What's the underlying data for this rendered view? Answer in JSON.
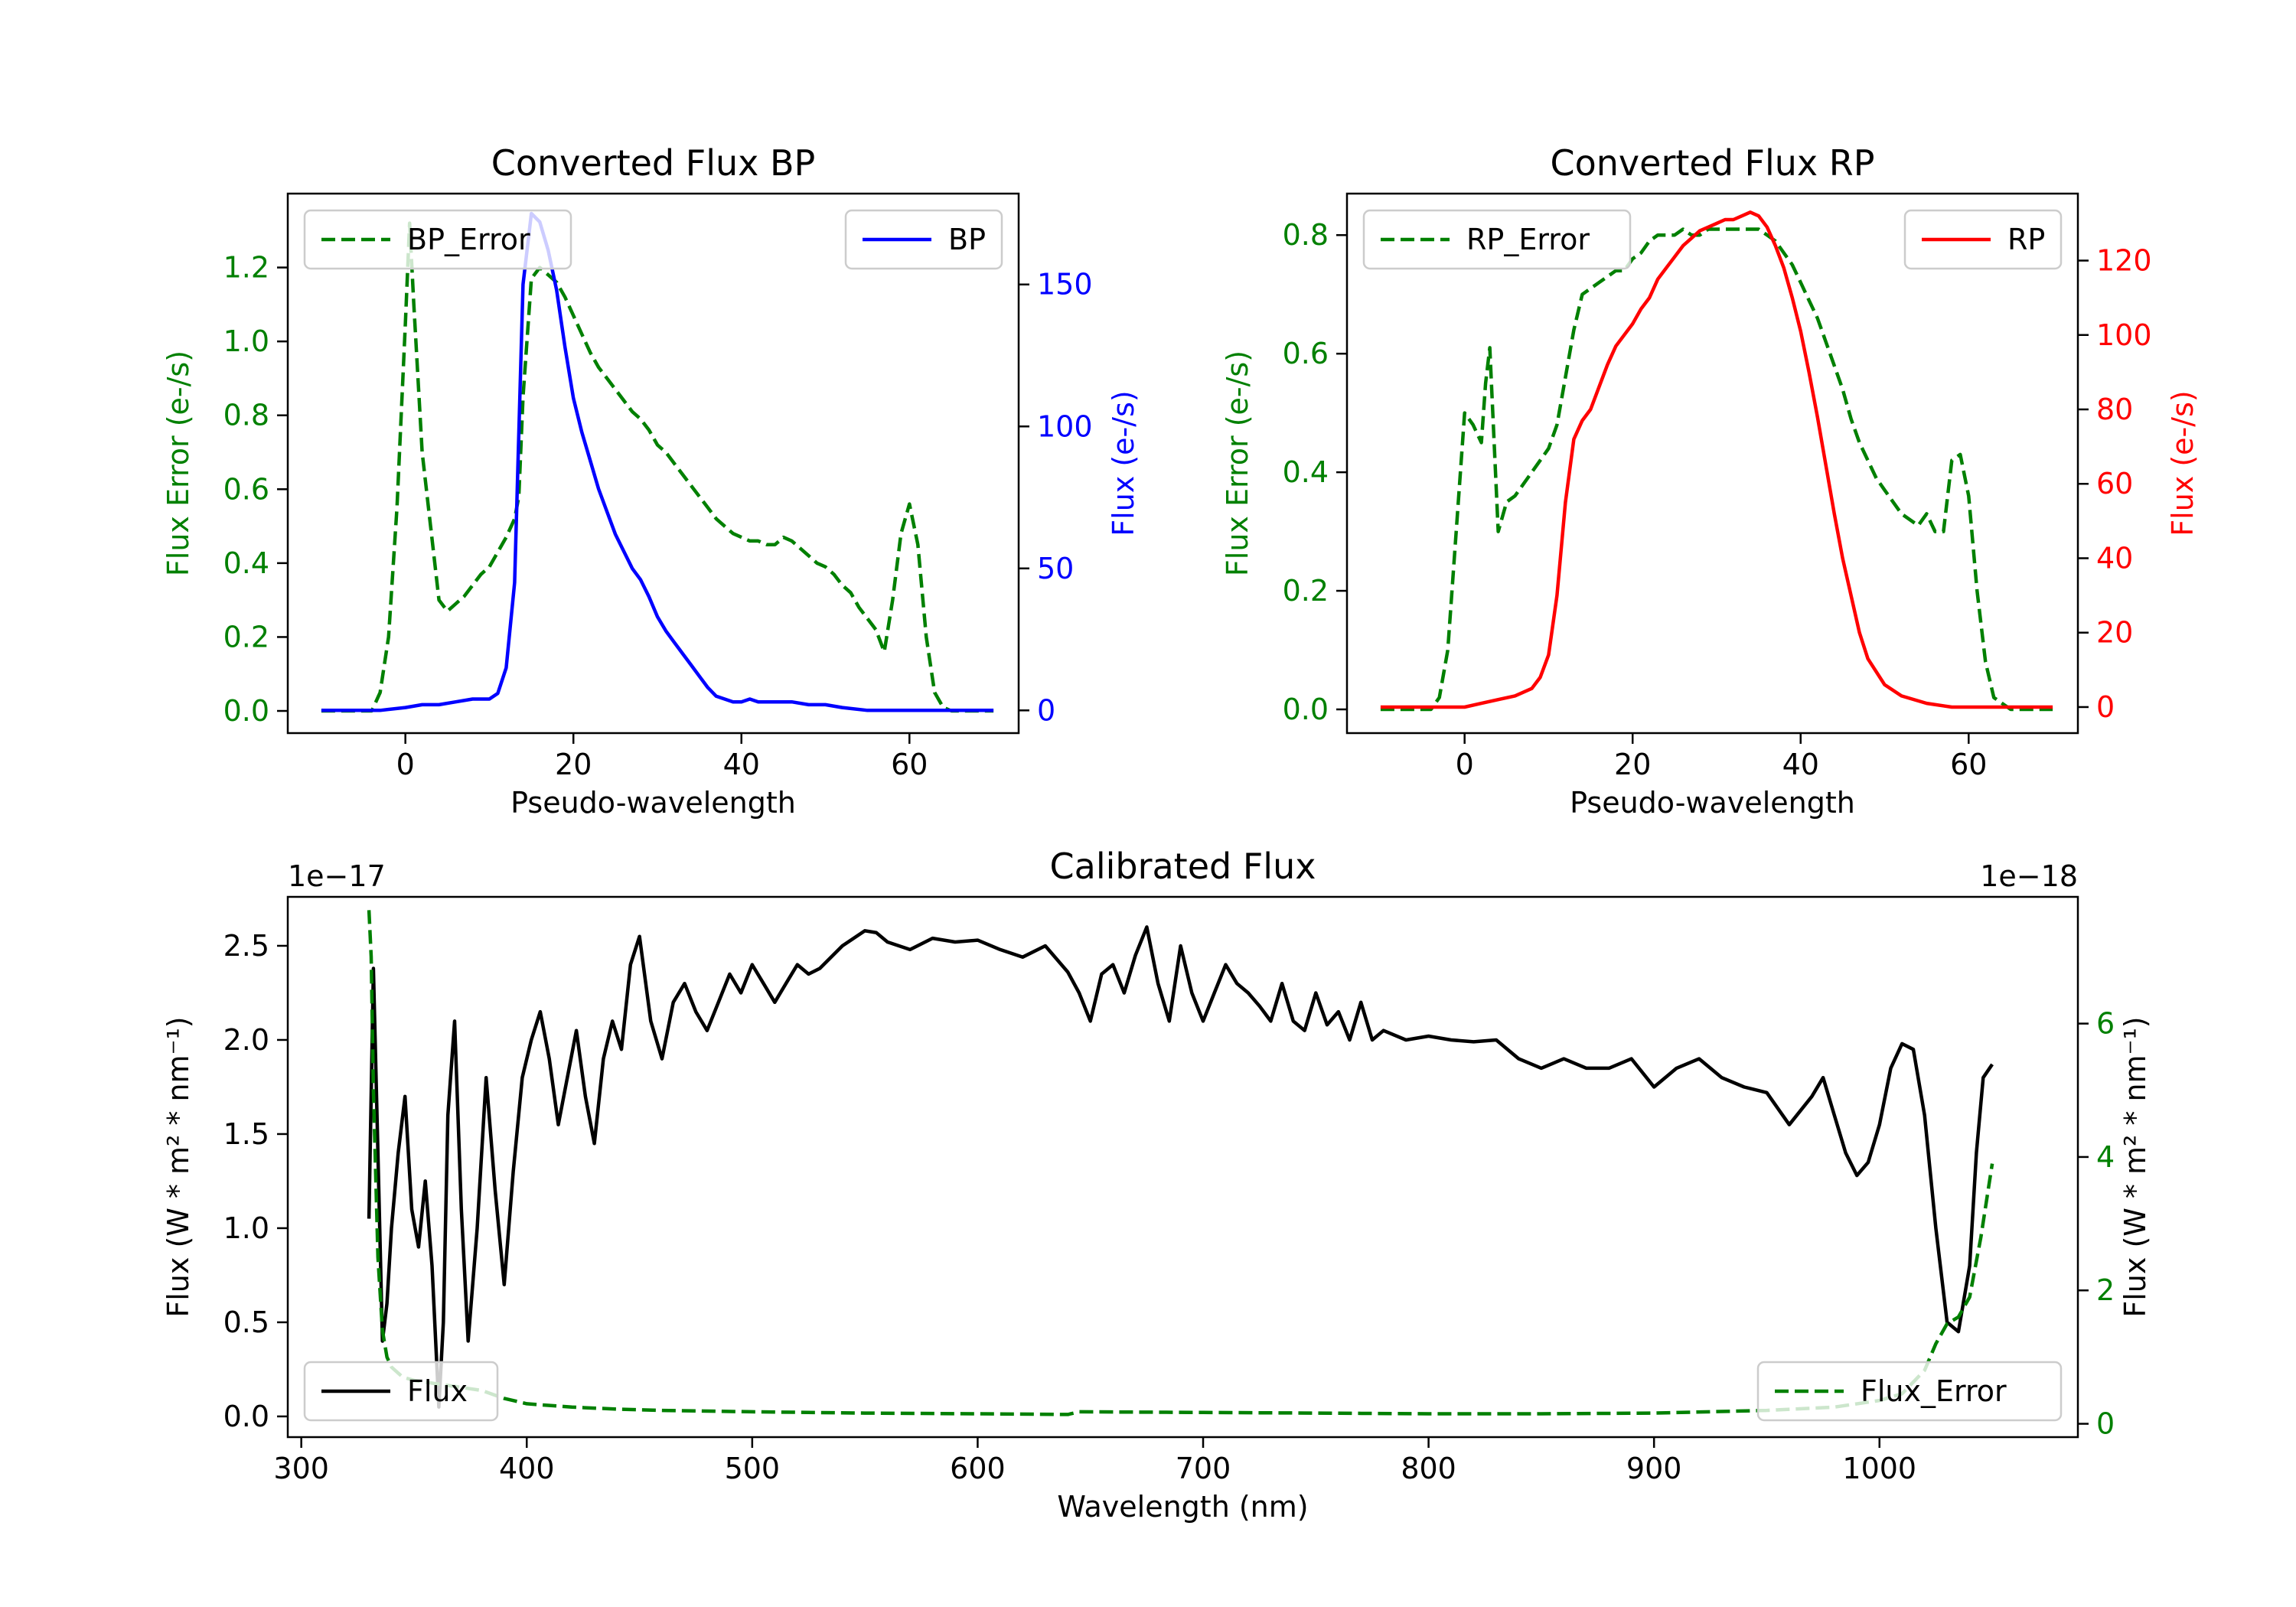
{
  "colors": {
    "error": "#008000",
    "bp": "#0000ff",
    "rp": "#ff0000",
    "flux": "#000000",
    "axis": "#000000"
  },
  "chart_data": [
    {
      "id": "bp",
      "type": "line",
      "title": "Converted Flux BP",
      "xlabel": "Pseudo-wavelength",
      "ylabel": "Flux Error (e-/s)",
      "ylabel_right": "Flux (e-/s)",
      "xlim": [
        -14,
        73
      ],
      "ylim": [
        -0.06,
        1.4
      ],
      "ylim_right": [
        -8,
        182
      ],
      "xticks": [
        0,
        20,
        40,
        60
      ],
      "yticks": [
        0.0,
        0.2,
        0.4,
        0.6,
        0.8,
        1.0,
        1.2
      ],
      "yticks_right": [
        0,
        50,
        100,
        150
      ],
      "series": [
        {
          "name": "BP_Error",
          "axis": "left",
          "style": "dashed",
          "color": "error",
          "legend_loc": "upper left",
          "x": [
            -10,
            -4,
            -3,
            -2,
            -1,
            0,
            0.5,
            1,
            2,
            3,
            4,
            5,
            6,
            7,
            8,
            9,
            10,
            11,
            12,
            13,
            13.5,
            14,
            15,
            16,
            17,
            18,
            19,
            20,
            21,
            22,
            23,
            24,
            25,
            26,
            27,
            28,
            29,
            30,
            31,
            32,
            33,
            34,
            35,
            36,
            37,
            38,
            39,
            40,
            41,
            42,
            43,
            44,
            45,
            46,
            47,
            48,
            49,
            50,
            51,
            52,
            53,
            54,
            55,
            56,
            57,
            58,
            59,
            60,
            61,
            62,
            63,
            64,
            65,
            70
          ],
          "y": [
            0.0,
            0.0,
            0.05,
            0.2,
            0.55,
            1.05,
            1.32,
            1.1,
            0.7,
            0.5,
            0.3,
            0.27,
            0.29,
            0.31,
            0.34,
            0.37,
            0.39,
            0.43,
            0.47,
            0.52,
            0.58,
            0.85,
            1.17,
            1.2,
            1.18,
            1.16,
            1.12,
            1.07,
            1.02,
            0.97,
            0.93,
            0.9,
            0.87,
            0.84,
            0.81,
            0.79,
            0.76,
            0.72,
            0.7,
            0.67,
            0.64,
            0.61,
            0.58,
            0.55,
            0.52,
            0.5,
            0.48,
            0.47,
            0.46,
            0.46,
            0.45,
            0.45,
            0.47,
            0.46,
            0.44,
            0.42,
            0.4,
            0.39,
            0.37,
            0.34,
            0.32,
            0.28,
            0.25,
            0.22,
            0.16,
            0.3,
            0.48,
            0.56,
            0.45,
            0.2,
            0.05,
            0.01,
            0.0,
            0.0
          ]
        },
        {
          "name": "BP",
          "axis": "right",
          "style": "solid",
          "color": "bp",
          "legend_loc": "upper right",
          "x": [
            -10,
            -6,
            -3,
            0,
            2,
            4,
            6,
            8,
            10,
            11,
            12,
            13,
            14,
            15,
            16,
            17,
            18,
            19,
            20,
            21,
            22,
            23,
            24,
            25,
            26,
            27,
            28,
            29,
            30,
            31,
            32,
            33,
            34,
            35,
            36,
            37,
            38,
            39,
            40,
            41,
            42,
            44,
            46,
            48,
            50,
            52,
            55,
            60,
            65,
            70
          ],
          "y": [
            0,
            0,
            0,
            1,
            2,
            2,
            3,
            4,
            4,
            6,
            15,
            45,
            150,
            175,
            172,
            162,
            148,
            128,
            110,
            98,
            88,
            78,
            70,
            62,
            56,
            50,
            46,
            40,
            33,
            28,
            24,
            20,
            16,
            12,
            8,
            5,
            4,
            3,
            3,
            4,
            3,
            3,
            3,
            2,
            2,
            1,
            0,
            0,
            0,
            0
          ]
        }
      ]
    },
    {
      "id": "rp",
      "type": "line",
      "title": "Converted Flux RP",
      "xlabel": "Pseudo-wavelength",
      "ylabel": "Flux Error (e-/s)",
      "ylabel_right": "Flux (e-/s)",
      "xlim": [
        -14,
        73
      ],
      "ylim": [
        -0.04,
        0.87
      ],
      "ylim_right": [
        -7,
        138
      ],
      "xticks": [
        0,
        20,
        40,
        60
      ],
      "yticks": [
        0.0,
        0.2,
        0.4,
        0.6,
        0.8
      ],
      "yticks_right": [
        0,
        20,
        40,
        60,
        80,
        100,
        120
      ],
      "series": [
        {
          "name": "RP_Error",
          "axis": "left",
          "style": "dashed",
          "color": "error",
          "legend_loc": "upper left",
          "x": [
            -10,
            -4,
            -3,
            -2,
            -1,
            0,
            1,
            2,
            2.5,
            3,
            4,
            5,
            6,
            7,
            8,
            9,
            10,
            11,
            12,
            13,
            14,
            15,
            16,
            17,
            18,
            19,
            20,
            21,
            22,
            23,
            24,
            25,
            26,
            27,
            28,
            29,
            30,
            31,
            32,
            33,
            34,
            35,
            36,
            37,
            38,
            39,
            40,
            41,
            42,
            43,
            44,
            45,
            46,
            47,
            48,
            49,
            50,
            51,
            52,
            53,
            54,
            55,
            56,
            57,
            58,
            59,
            60,
            61,
            62,
            63,
            64,
            65,
            70
          ],
          "y": [
            0.0,
            0.0,
            0.02,
            0.1,
            0.3,
            0.5,
            0.48,
            0.45,
            0.55,
            0.61,
            0.3,
            0.35,
            0.36,
            0.38,
            0.4,
            0.42,
            0.44,
            0.48,
            0.56,
            0.64,
            0.7,
            0.71,
            0.72,
            0.73,
            0.74,
            0.74,
            0.76,
            0.77,
            0.79,
            0.8,
            0.8,
            0.8,
            0.81,
            0.8,
            0.8,
            0.81,
            0.81,
            0.81,
            0.81,
            0.81,
            0.81,
            0.81,
            0.8,
            0.79,
            0.77,
            0.75,
            0.72,
            0.69,
            0.66,
            0.62,
            0.58,
            0.54,
            0.49,
            0.45,
            0.42,
            0.39,
            0.37,
            0.35,
            0.33,
            0.32,
            0.31,
            0.33,
            0.3,
            0.3,
            0.42,
            0.43,
            0.36,
            0.2,
            0.08,
            0.02,
            0.01,
            0.0,
            0.0
          ]
        },
        {
          "name": "RP",
          "axis": "right",
          "style": "solid",
          "color": "rp",
          "legend_loc": "upper right",
          "x": [
            -10,
            -5,
            0,
            2,
            4,
            6,
            8,
            9,
            10,
            11,
            12,
            13,
            14,
            15,
            16,
            17,
            18,
            19,
            20,
            21,
            22,
            23,
            24,
            25,
            26,
            27,
            28,
            29,
            30,
            31,
            32,
            33,
            34,
            35,
            36,
            37,
            38,
            39,
            40,
            41,
            42,
            43,
            44,
            45,
            46,
            47,
            48,
            50,
            52,
            55,
            58,
            60,
            65,
            70
          ],
          "y": [
            0,
            0,
            0,
            1,
            2,
            3,
            5,
            8,
            14,
            30,
            55,
            72,
            77,
            80,
            86,
            92,
            97,
            100,
            103,
            107,
            110,
            115,
            118,
            121,
            124,
            126,
            128,
            129,
            130,
            131,
            131,
            132,
            133,
            132,
            129,
            124,
            118,
            110,
            101,
            90,
            78,
            65,
            52,
            40,
            30,
            20,
            13,
            6,
            3,
            1,
            0,
            0,
            0,
            0
          ]
        }
      ]
    },
    {
      "id": "calibrated",
      "type": "line",
      "title": "Calibrated Flux",
      "xlabel": "Wavelength (nm)",
      "ylabel": "Flux (W * m² * nm⁻¹)",
      "ylabel_right": "Flux (W * m² * nm⁻¹)",
      "offset_left": "1e−17",
      "offset_right": "1e−18",
      "xlim": [
        294,
        1088
      ],
      "ylim": [
        -0.11,
        2.76
      ],
      "ylim_right": [
        -0.2,
        7.9
      ],
      "xticks": [
        300,
        400,
        500,
        600,
        700,
        800,
        900,
        1000
      ],
      "yticks": [
        0.0,
        0.5,
        1.0,
        1.5,
        2.0,
        2.5
      ],
      "yticks_right": [
        0,
        2,
        4,
        6
      ],
      "series": [
        {
          "name": "Flux",
          "axis": "left",
          "style": "solid",
          "color": "flux",
          "legend_loc": "lower left",
          "x": [
            330,
            332,
            334,
            336,
            338,
            340,
            343,
            346,
            349,
            352,
            355,
            358,
            361,
            363,
            365,
            368,
            371,
            374,
            378,
            382,
            386,
            390,
            394,
            398,
            402,
            406,
            410,
            414,
            418,
            422,
            426,
            430,
            434,
            438,
            442,
            446,
            450,
            455,
            460,
            465,
            470,
            475,
            480,
            485,
            490,
            495,
            500,
            505,
            510,
            515,
            520,
            525,
            530,
            540,
            550,
            555,
            560,
            570,
            580,
            590,
            600,
            610,
            620,
            630,
            640,
            645,
            650,
            655,
            660,
            665,
            670,
            675,
            680,
            685,
            690,
            695,
            700,
            705,
            710,
            715,
            720,
            725,
            730,
            735,
            740,
            745,
            750,
            755,
            760,
            765,
            770,
            775,
            780,
            790,
            800,
            810,
            820,
            830,
            840,
            850,
            860,
            870,
            880,
            890,
            900,
            910,
            920,
            930,
            940,
            950,
            960,
            970,
            975,
            980,
            985,
            990,
            995,
            1000,
            1005,
            1010,
            1015,
            1020,
            1025,
            1030,
            1035,
            1040,
            1043,
            1046,
            1050
          ],
          "y": [
            1.05,
            2.38,
            1.4,
            0.4,
            0.6,
            1.0,
            1.4,
            1.7,
            1.1,
            0.9,
            1.25,
            0.8,
            0.05,
            0.5,
            1.6,
            2.1,
            1.1,
            0.4,
            1.0,
            1.8,
            1.2,
            0.7,
            1.3,
            1.8,
            2.0,
            2.15,
            1.9,
            1.55,
            1.8,
            2.05,
            1.7,
            1.45,
            1.9,
            2.1,
            1.95,
            2.4,
            2.55,
            2.1,
            1.9,
            2.2,
            2.3,
            2.15,
            2.05,
            2.2,
            2.35,
            2.25,
            2.4,
            2.3,
            2.2,
            2.3,
            2.4,
            2.35,
            2.38,
            2.5,
            2.58,
            2.57,
            2.52,
            2.48,
            2.54,
            2.52,
            2.53,
            2.48,
            2.44,
            2.5,
            2.36,
            2.25,
            2.1,
            2.35,
            2.4,
            2.25,
            2.45,
            2.6,
            2.3,
            2.1,
            2.5,
            2.25,
            2.1,
            2.25,
            2.4,
            2.3,
            2.25,
            2.18,
            2.1,
            2.3,
            2.1,
            2.05,
            2.25,
            2.08,
            2.15,
            2.0,
            2.2,
            2.0,
            2.05,
            2.0,
            2.02,
            2.0,
            1.99,
            2.0,
            1.9,
            1.85,
            1.9,
            1.85,
            1.85,
            1.9,
            1.75,
            1.85,
            1.9,
            1.8,
            1.75,
            1.72,
            1.55,
            1.7,
            1.8,
            1.6,
            1.4,
            1.28,
            1.35,
            1.55,
            1.85,
            1.98,
            1.95,
            1.6,
            1.0,
            0.5,
            0.45,
            0.8,
            1.4,
            1.8,
            1.87
          ]
        },
        {
          "name": "Flux_Error",
          "axis": "right",
          "style": "dashed",
          "color": "error",
          "legend_loc": "lower right",
          "x": [
            330,
            331,
            332,
            334,
            336,
            338,
            340,
            345,
            350,
            360,
            370,
            380,
            390,
            400,
            420,
            440,
            460,
            500,
            550,
            600,
            640,
            645,
            700,
            750,
            800,
            850,
            900,
            950,
            980,
            1000,
            1010,
            1020,
            1025,
            1030,
            1035,
            1040,
            1045,
            1050
          ],
          "y": [
            7.7,
            7.0,
            5.0,
            2.5,
            1.4,
            1.0,
            0.85,
            0.7,
            0.65,
            0.6,
            0.55,
            0.5,
            0.38,
            0.3,
            0.25,
            0.22,
            0.2,
            0.18,
            0.16,
            0.15,
            0.14,
            0.18,
            0.17,
            0.16,
            0.15,
            0.15,
            0.16,
            0.2,
            0.25,
            0.35,
            0.45,
            0.8,
            1.2,
            1.5,
            1.6,
            1.9,
            2.8,
            3.9
          ]
        }
      ]
    }
  ]
}
